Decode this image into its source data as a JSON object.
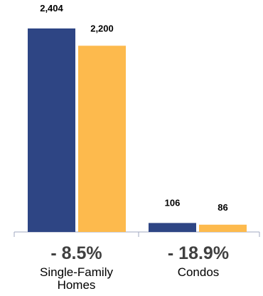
{
  "chart_data": {
    "type": "bar",
    "categories": [
      "Single-Family Homes",
      "Condos"
    ],
    "category_lines": [
      [
        "Single-Family",
        "Homes"
      ],
      [
        "Condos"
      ]
    ],
    "changes": [
      "- 8.5%",
      "- 18.9%"
    ],
    "series": [
      {
        "values": [
          2404,
          106
        ],
        "value_labels": [
          "2,404",
          "106"
        ]
      },
      {
        "values": [
          2200,
          86
        ],
        "value_labels": [
          "2,200",
          "86"
        ]
      }
    ],
    "ylim": [
      0,
      2404
    ],
    "grid": false,
    "legend": "none"
  },
  "colors": {
    "series": [
      "#2E4584",
      "#FDBA4D"
    ],
    "axis": "#A0A8C0"
  }
}
